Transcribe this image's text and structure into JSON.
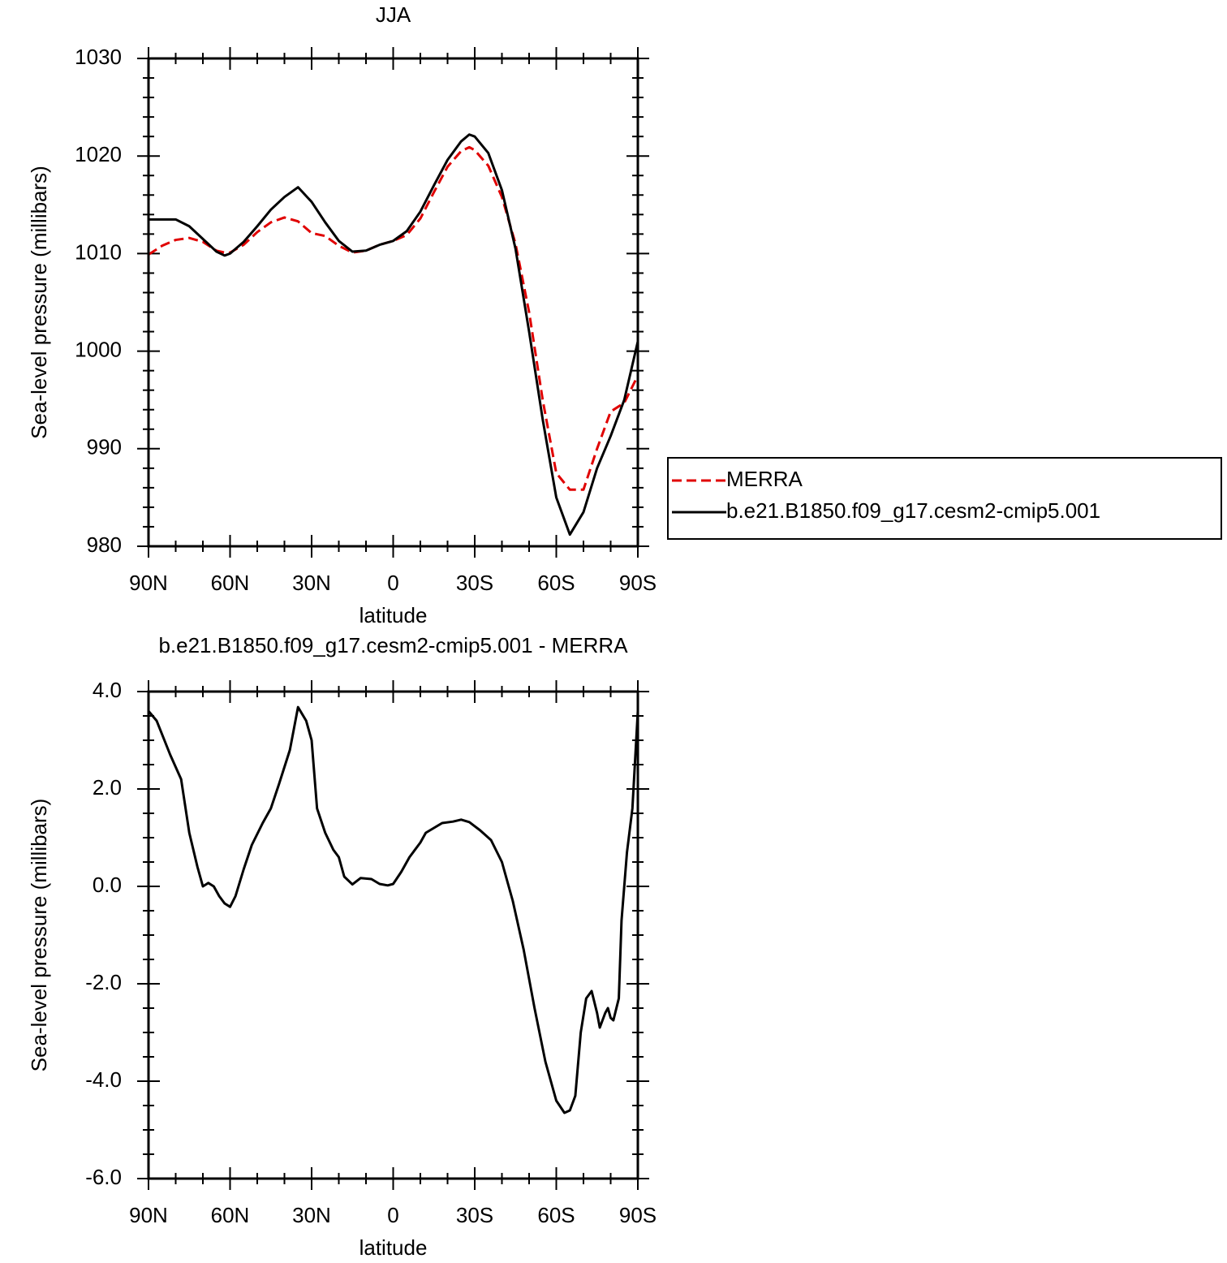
{
  "chart_data": [
    {
      "type": "line",
      "title": "JJA",
      "x_label": "latitude",
      "y_label": "Sea-level pressure (millibars)",
      "x": [
        90,
        85,
        80,
        75,
        70,
        65,
        62,
        60,
        55,
        50,
        45,
        40,
        35,
        30,
        25,
        20,
        15,
        10,
        5,
        0,
        -5,
        -10,
        -15,
        -20,
        -25,
        -28,
        -30,
        -35,
        -40,
        -45,
        -50,
        -55,
        -60,
        -65,
        -70,
        -75,
        -80,
        -85,
        -90
      ],
      "series": [
        {
          "name": "MERRA",
          "color": "#e00000",
          "dashed": true,
          "values": [
            1009.9,
            1010.8,
            1011.4,
            1011.6,
            1011.2,
            1010.3,
            1010.1,
            1010.1,
            1010.9,
            1012.2,
            1013.2,
            1013.7,
            1013.3,
            1012.1,
            1011.8,
            1010.8,
            1010.1,
            1010.3,
            1010.9,
            1011.3,
            1011.9,
            1013.6,
            1016.3,
            1018.9,
            1020.5,
            1020.9,
            1020.6,
            1019.0,
            1015.8,
            1011.0,
            1004.0,
            995.0,
            987.5,
            985.8,
            985.8,
            990.0,
            993.8,
            994.7,
            997.5
          ]
        },
        {
          "name": "b.e21.B1850.f09_g17.cesm2-cmip5.001",
          "color": "#000000",
          "dashed": false,
          "values": [
            1013.5,
            1013.5,
            1013.5,
            1012.8,
            1011.5,
            1010.2,
            1009.8,
            1010.0,
            1011.2,
            1012.8,
            1014.5,
            1015.8,
            1016.8,
            1015.3,
            1013.2,
            1011.3,
            1010.2,
            1010.3,
            1010.9,
            1011.3,
            1012.3,
            1014.3,
            1017.0,
            1019.6,
            1021.5,
            1022.2,
            1022.0,
            1020.3,
            1016.5,
            1010.5,
            1002.0,
            993.0,
            985.0,
            981.2,
            983.5,
            988.0,
            991.3,
            995.0,
            1001.0
          ]
        }
      ],
      "xlim": [
        90,
        -90
      ],
      "xticks": [
        {
          "value": 90,
          "label": "90N"
        },
        {
          "value": 60,
          "label": "60N"
        },
        {
          "value": 30,
          "label": "30N"
        },
        0,
        {
          "value": -30,
          "label": "30S"
        },
        {
          "value": -60,
          "label": "60S"
        },
        {
          "value": -90,
          "label": "90S"
        }
      ],
      "xminorticks": [
        80,
        70,
        50,
        40,
        20,
        10,
        -10,
        -20,
        -40,
        -50,
        -70,
        -80
      ],
      "ylim": [
        980,
        1030
      ],
      "yticks": [
        980,
        990,
        1000,
        1010,
        1020,
        1030
      ],
      "yminorticks": [
        982,
        984,
        986,
        988,
        992,
        994,
        996,
        998,
        1002,
        1004,
        1006,
        1008,
        1012,
        1014,
        1016,
        1018,
        1022,
        1024,
        1026,
        1028
      ],
      "legend": "right"
    },
    {
      "type": "line",
      "title": "b.e21.B1850.f09_g17.cesm2-cmip5.001 - MERRA",
      "x_label": "latitude",
      "y_label": "Sea-level pressure (millibars)",
      "x": [
        90,
        87,
        82,
        78,
        75,
        72,
        70,
        68,
        66,
        64,
        62,
        60,
        58,
        55,
        52,
        48,
        45,
        42,
        38,
        35,
        32,
        30,
        28,
        25,
        22,
        20,
        18,
        15,
        12,
        8,
        5,
        2,
        0,
        -3,
        -6,
        -10,
        -12,
        -15,
        -18,
        -22,
        -25,
        -28,
        -32,
        -36,
        -40,
        -44,
        -48,
        -52,
        -56,
        -60,
        -63,
        -65,
        -67,
        -69,
        -71,
        -73,
        -75,
        -76,
        -78,
        -79,
        -80,
        -81,
        -83,
        -84,
        -86,
        -88,
        -90
      ],
      "series": [
        {
          "color": "#000000",
          "dashed": false,
          "values": [
            3.6,
            3.4,
            2.7,
            2.2,
            1.1,
            0.4,
            0.0,
            0.07,
            0.0,
            -0.2,
            -0.35,
            -0.42,
            -0.2,
            0.35,
            0.85,
            1.3,
            1.6,
            2.1,
            2.8,
            3.68,
            3.4,
            3.0,
            1.6,
            1.1,
            0.75,
            0.6,
            0.2,
            0.04,
            0.17,
            0.15,
            0.05,
            0.02,
            0.05,
            0.3,
            0.6,
            0.9,
            1.1,
            1.2,
            1.3,
            1.33,
            1.37,
            1.32,
            1.15,
            0.95,
            0.5,
            -0.3,
            -1.3,
            -2.5,
            -3.6,
            -4.4,
            -4.65,
            -4.6,
            -4.3,
            -3.0,
            -2.3,
            -2.15,
            -2.6,
            -2.9,
            -2.6,
            -2.5,
            -2.7,
            -2.75,
            -2.3,
            -0.7,
            0.7,
            1.6,
            3.6
          ]
        }
      ],
      "xlim": [
        90,
        -90
      ],
      "xticks": [
        {
          "value": 90,
          "label": "90N"
        },
        {
          "value": 60,
          "label": "60N"
        },
        {
          "value": 30,
          "label": "30N"
        },
        0,
        {
          "value": -30,
          "label": "30S"
        },
        {
          "value": -60,
          "label": "60S"
        },
        {
          "value": -90,
          "label": "90S"
        }
      ],
      "xminorticks": [
        80,
        70,
        50,
        40,
        20,
        10,
        -10,
        -20,
        -40,
        -50,
        -70,
        -80
      ],
      "ylim": [
        -6,
        4
      ],
      "yticks": [
        {
          "value": -6,
          "label": "-6.0"
        },
        {
          "value": -4,
          "label": "-4.0"
        },
        {
          "value": -2,
          "label": "-2.0"
        },
        {
          "value": 0,
          "label": "0.0"
        },
        {
          "value": 2,
          "label": "2.0"
        },
        {
          "value": 4,
          "label": "4.0"
        }
      ],
      "yminorticks": [
        -5.5,
        -5,
        -4.5,
        -3.5,
        -3,
        -2.5,
        -1.5,
        -1,
        -0.5,
        0.5,
        1,
        1.5,
        2.5,
        3,
        3.5
      ]
    }
  ]
}
